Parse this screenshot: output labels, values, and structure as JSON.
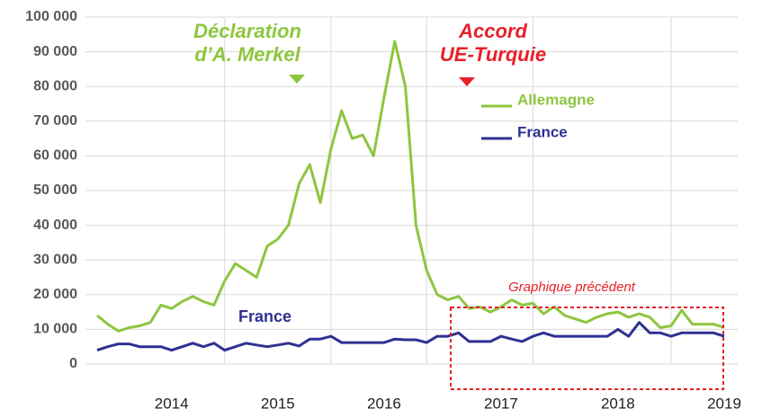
{
  "chart_data": {
    "type": "line",
    "categories": [
      null,
      null,
      null,
      null,
      null,
      null,
      null,
      "2014",
      null,
      null,
      null,
      null,
      null,
      null,
      null,
      null,
      null,
      "2015",
      null,
      null,
      null,
      null,
      null,
      null,
      null,
      null,
      null,
      "2016",
      null,
      null,
      null,
      null,
      null,
      null,
      null,
      null,
      null,
      null,
      "2017",
      null,
      null,
      null,
      null,
      null,
      null,
      null,
      null,
      null,
      null,
      "2018",
      null,
      null,
      null,
      null,
      null,
      null,
      null,
      null,
      null,
      "2019"
    ],
    "series": [
      {
        "name": "Allemagne",
        "color": "#8dc63f",
        "values": [
          14000,
          11500,
          9500,
          10500,
          11000,
          12000,
          17000,
          16000,
          18000,
          19500,
          18000,
          17000,
          24000,
          29000,
          27000,
          25000,
          34000,
          36000,
          40000,
          52000,
          57500,
          46500,
          62000,
          73000,
          65000,
          66000,
          60000,
          77000,
          93000,
          80000,
          40000,
          27000,
          20000,
          18500,
          19500,
          16000,
          16500,
          15000,
          16500,
          18500,
          17000,
          17500,
          14500,
          16500,
          14000,
          13000,
          12000,
          13500,
          14500,
          15000,
          13500,
          14500,
          13500,
          10500,
          11000,
          15500,
          11500,
          11500,
          11500,
          10500
        ]
      },
      {
        "name": "France",
        "color": "#2e3192",
        "values": [
          4000,
          5000,
          5800,
          5800,
          5000,
          5000,
          5000,
          4000,
          5000,
          6000,
          5000,
          6000,
          4000,
          5000,
          6000,
          5500,
          5000,
          5500,
          6000,
          5200,
          7200,
          7200,
          8000,
          6200,
          6200,
          6200,
          6200,
          6200,
          7200,
          7000,
          7000,
          6200,
          8000,
          8000,
          9000,
          6500,
          6500,
          6500,
          8000,
          7200,
          6500,
          8000,
          9000,
          8000,
          8000,
          8000,
          8000,
          8000,
          8000,
          10000,
          8000,
          12000,
          9000,
          9000,
          8000,
          9000,
          9000,
          9000,
          9000,
          8000
        ]
      }
    ],
    "ylim": [
      0,
      100000
    ],
    "yticks": [
      0,
      {
        "value": 10000,
        "label": "10 000"
      },
      {
        "value": 20000,
        "label": "20 000"
      },
      {
        "value": 30000,
        "label": "30 000"
      },
      {
        "value": 40000,
        "label": "40 000"
      },
      {
        "value": 50000,
        "label": "50 000"
      },
      {
        "value": 60000,
        "label": "60 000"
      },
      {
        "value": 70000,
        "label": "70 000"
      },
      {
        "value": 80000,
        "label": "80 000"
      },
      {
        "value": 90000,
        "label": "90 000"
      },
      {
        "value": 100000,
        "label": "100 000"
      }
    ],
    "grid": true,
    "annotations": [
      {
        "lines": [
          "Déclaration",
          "d’A. Merkel"
        ],
        "color": "#8dc63f"
      },
      {
        "lines": [
          "Accord",
          "UE-Turquie"
        ],
        "color": "#e8202a"
      },
      {
        "lines": [
          "France"
        ],
        "color": "#2e3192"
      },
      {
        "lines": [
          "Graphique précédent"
        ],
        "color": "#e8202a"
      }
    ]
  }
}
